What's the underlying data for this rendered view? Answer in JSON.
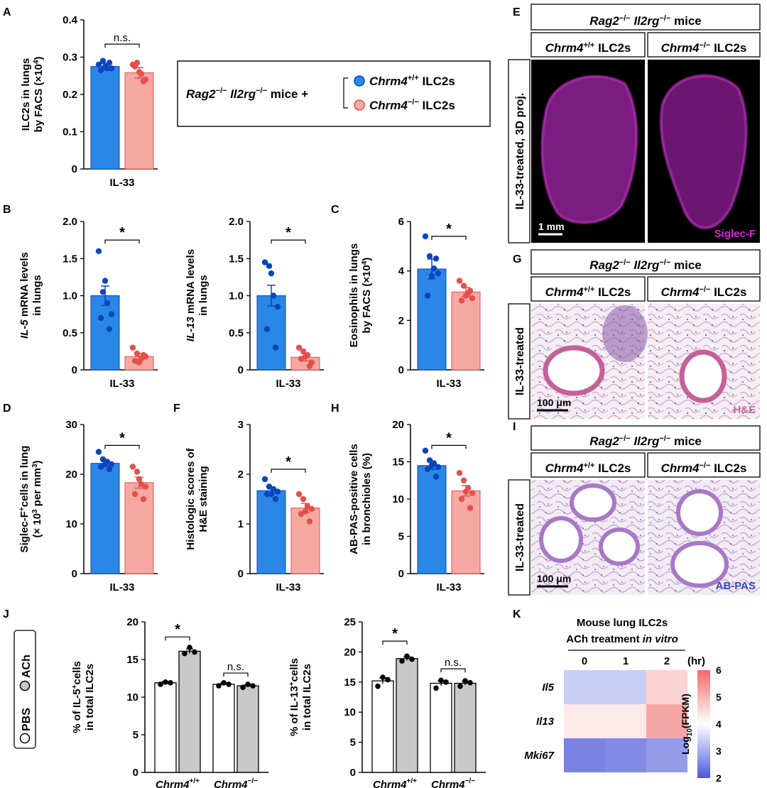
{
  "colors": {
    "wt_fill": "#2b87e6",
    "wt_dot": "#0a45c0",
    "ko_fill": "#f6a8a2",
    "ko_dot": "#e5504a",
    "pbs_fill": "#ffffff",
    "ach_fill": "#c8c8c8",
    "magenta": "#e020e0",
    "he_label": "#c06aa6",
    "abpas_label": "#3445c0"
  },
  "legend": {
    "prefix_rag": "Rag2",
    "sup_rag": "−/−",
    "prefix_il": " Il2rg",
    "sup_il": "−/−",
    "mice": " mice +",
    "wt_gene": "Chrm4",
    "wt_sup": "+/+",
    "ko_gene": "Chrm4",
    "ko_sup": "−/−",
    "cells": " ILC2s"
  },
  "panel_labels": [
    "A",
    "B",
    "C",
    "D",
    "F",
    "H",
    "J",
    "E",
    "G",
    "I",
    "K"
  ],
  "genotype_labels": {
    "wt": "Chrm4",
    "wt_sup": "+/+",
    "ko": "Chrm4",
    "ko_sup": "−/−",
    "cells": " ILC2s"
  },
  "chart_data": [
    {
      "id": "A",
      "type": "bar",
      "xlabel": "IL-33",
      "ylabel": [
        "ILC2s in lungs",
        "by FACS (×10",
        "4",
        ")"
      ],
      "ylim": [
        0,
        0.4
      ],
      "ticks": [
        "0",
        "0.1",
        "0.2",
        "0.3",
        "0.4"
      ],
      "categories": [
        "Chrm4+/+",
        "Chrm4−/−"
      ],
      "values": [
        0.275,
        0.258
      ],
      "errors": [
        0.008,
        0.014
      ],
      "points": [
        [
          0.28,
          0.29,
          0.27,
          0.27,
          0.265,
          0.285,
          0.275
        ],
        [
          0.28,
          0.285,
          0.255,
          0.24,
          0.275,
          0.235,
          0.26
        ]
      ],
      "sig": "n.s."
    },
    {
      "id": "B1",
      "type": "bar",
      "xlabel": "IL-33",
      "ylabel": [
        "IL-5",
        " mRNA levels",
        "in lungs"
      ],
      "ylim": [
        0,
        2.0
      ],
      "ticks": [
        "0",
        "0.5",
        "1.0",
        "1.5",
        "2.0"
      ],
      "categories": [
        "Chrm4+/+",
        "Chrm4−/−"
      ],
      "values": [
        1.0,
        0.18
      ],
      "errors": [
        0.13,
        0.04
      ],
      "points": [
        [
          1.6,
          1.05,
          0.9,
          0.75,
          0.7,
          0.55,
          1.2
        ],
        [
          0.3,
          0.22,
          0.15,
          0.18,
          0.12,
          0.2,
          0.1
        ]
      ],
      "sig": "*"
    },
    {
      "id": "B2",
      "type": "bar",
      "xlabel": "IL-33",
      "ylabel": [
        "IL-13",
        " mRNA levels",
        "in lungs"
      ],
      "ylim": [
        0,
        2.0
      ],
      "ticks": [
        "0",
        "0.5",
        "1.0",
        "1.5",
        "2.0"
      ],
      "categories": [
        "Chrm4+/+",
        "Chrm4−/−"
      ],
      "values": [
        1.0,
        0.17
      ],
      "errors": [
        0.14,
        0.05
      ],
      "points": [
        [
          1.45,
          1.4,
          1.0,
          0.85,
          0.55,
          0.3,
          1.3
        ],
        [
          0.3,
          0.25,
          0.2,
          0.1,
          0.15,
          0.05,
          0.18
        ]
      ],
      "sig": "*"
    },
    {
      "id": "C",
      "type": "bar",
      "xlabel": "IL-33",
      "ylabel": [
        "Eosinophils in lungs",
        "by FACS (×10",
        "4",
        ")"
      ],
      "ylim": [
        0,
        6
      ],
      "ticks": [
        "0",
        "2",
        "4",
        "6"
      ],
      "categories": [
        "Chrm4+/+",
        "Chrm4−/−"
      ],
      "values": [
        4.08,
        3.15
      ],
      "errors": [
        0.4,
        0.18
      ],
      "points": [
        [
          5.4,
          4.6,
          4.1,
          3.9,
          3.0,
          4.5,
          3.8
        ],
        [
          3.6,
          3.4,
          3.1,
          2.9,
          2.8,
          3.2,
          3.0
        ]
      ],
      "sig": "*"
    },
    {
      "id": "D",
      "type": "bar",
      "xlabel": "IL-33",
      "ylabel": [
        "Siglec-F",
        "+",
        "cells in lung",
        "(× 10",
        "3",
        " per mm",
        "3",
        ")"
      ],
      "ylim": [
        0,
        30
      ],
      "ticks": [
        "0",
        "10",
        "20",
        "30"
      ],
      "categories": [
        "Chrm4+/+",
        "Chrm4−/−"
      ],
      "values": [
        22.2,
        18.3
      ],
      "errors": [
        0.6,
        1.1
      ],
      "points": [
        [
          24.5,
          23.0,
          22.5,
          22.0,
          21.5,
          21.0,
          22.0
        ],
        [
          21.5,
          20.5,
          18.0,
          17.5,
          16.0,
          15.0,
          19.0
        ]
      ],
      "sig": "*"
    },
    {
      "id": "F",
      "type": "bar",
      "xlabel": "IL-33",
      "ylabel": [
        "Histologic scores of",
        "H&E staining"
      ],
      "ylim": [
        0,
        3
      ],
      "ticks": [
        "0",
        "1",
        "2",
        "3"
      ],
      "categories": [
        "Chrm4+/+",
        "Chrm4−/−"
      ],
      "values": [
        1.67,
        1.32
      ],
      "errors": [
        0.06,
        0.09
      ],
      "points": [
        [
          1.9,
          1.75,
          1.7,
          1.65,
          1.6,
          1.5,
          1.6
        ],
        [
          1.6,
          1.5,
          1.35,
          1.3,
          1.2,
          1.05,
          1.25
        ]
      ],
      "sig": "*"
    },
    {
      "id": "H",
      "type": "bar",
      "xlabel": "IL-33",
      "ylabel": [
        "AB-PAS-positive cells",
        "in bronchioles (%)"
      ],
      "ylim": [
        0,
        20
      ],
      "ticks": [
        "0",
        "5",
        "10",
        "15",
        "20"
      ],
      "categories": [
        "Chrm4+/+",
        "Chrm4−/−"
      ],
      "values": [
        14.5,
        11.1
      ],
      "errors": [
        0.5,
        0.7
      ],
      "points": [
        [
          16.5,
          15.2,
          14.8,
          14.3,
          14.0,
          13.0,
          14.5
        ],
        [
          13.5,
          12.5,
          11.5,
          10.8,
          10.0,
          8.8,
          11.0
        ]
      ],
      "sig": "*"
    },
    {
      "id": "J1",
      "type": "bar",
      "ylabel": [
        "% of IL-5",
        "+",
        "cells",
        "in total ILC2s"
      ],
      "ylim": [
        0,
        20
      ],
      "ticks": [
        "0",
        "5",
        "10",
        "15",
        "20"
      ],
      "groups": [
        "Chrm4+/+",
        "Chrm4−/−"
      ],
      "series": [
        {
          "name": "PBS",
          "values": [
            11.9,
            11.7
          ],
          "errors": [
            0.15,
            0.15
          ],
          "points": [
            [
              11.7,
              12.0,
              11.9
            ],
            [
              11.5,
              11.9,
              11.7
            ]
          ]
        },
        {
          "name": "ACh",
          "values": [
            16.1,
            11.5
          ],
          "errors": [
            0.3,
            0.15
          ],
          "points": [
            [
              15.8,
              16.6,
              16.0
            ],
            [
              11.3,
              11.7,
              11.5
            ]
          ]
        }
      ],
      "sig": [
        "*",
        "n.s."
      ]
    },
    {
      "id": "J2",
      "type": "bar",
      "ylabel": [
        "% of IL-13",
        "+",
        "cells",
        "in total ILC2s"
      ],
      "ylim": [
        0,
        25
      ],
      "ticks": [
        "0",
        "5",
        "10",
        "15",
        "20",
        "25"
      ],
      "groups": [
        "Chrm4+/+",
        "Chrm4−/−"
      ],
      "series": [
        {
          "name": "PBS",
          "values": [
            15.2,
            14.8
          ],
          "errors": [
            0.5,
            0.4
          ],
          "points": [
            [
              14.3,
              15.8,
              15.4
            ],
            [
              14.0,
              15.3,
              15.0
            ]
          ]
        },
        {
          "name": "ACh",
          "values": [
            18.9,
            14.8
          ],
          "errors": [
            0.3,
            0.3
          ],
          "points": [
            [
              18.5,
              19.3,
              18.8
            ],
            [
              14.3,
              15.2,
              14.9
            ]
          ]
        }
      ],
      "sig": [
        "*",
        "n.s."
      ]
    },
    {
      "id": "K",
      "type": "heatmap",
      "title": "Mouse lung ILC2s",
      "subtitle_pre": "ACh treatment ",
      "subtitle_it": "in vitro",
      "x": [
        "0",
        "1",
        "2"
      ],
      "x_unit": "(hr)",
      "y": [
        "Il5",
        "Il13",
        "Mki67"
      ],
      "values": [
        [
          3.4,
          3.4,
          4.6
        ],
        [
          4.3,
          4.3,
          5.2
        ],
        [
          2.5,
          2.6,
          2.8
        ]
      ],
      "colorbar": {
        "min": 2,
        "max": 6,
        "ticks": [
          "2",
          "3",
          "4",
          "5",
          "6"
        ],
        "label_pre": "Log",
        "label_sub": "10",
        "label_post": "(FPKM)"
      }
    }
  ],
  "panel_E": {
    "header_pre": "Rag2",
    "header_sup1": "−/−",
    "header_mid": " Il2rg",
    "header_sup2": "−/−",
    "header_post": " mice",
    "side_label": "IL-33-treated, 3D proj.",
    "scale": "1 mm",
    "stain": "Siglec-F"
  },
  "panel_G": {
    "header_pre": "Rag2",
    "header_sup1": "−/−",
    "header_mid": " Il2rg",
    "header_sup2": "−/−",
    "header_post": " mice",
    "side_label": "IL-33-treated",
    "scale": "100 μm",
    "stain": "H&E"
  },
  "panel_I": {
    "header_pre": "Rag2",
    "header_sup1": "−/−",
    "header_mid": " Il2rg",
    "header_sup2": "−/−",
    "header_post": " mice",
    "side_label": "IL-33-treated",
    "scale": "100 μm",
    "stain": "AB-PAS"
  },
  "j_legend": {
    "pbs": "PBS",
    "ach": "ACh"
  }
}
